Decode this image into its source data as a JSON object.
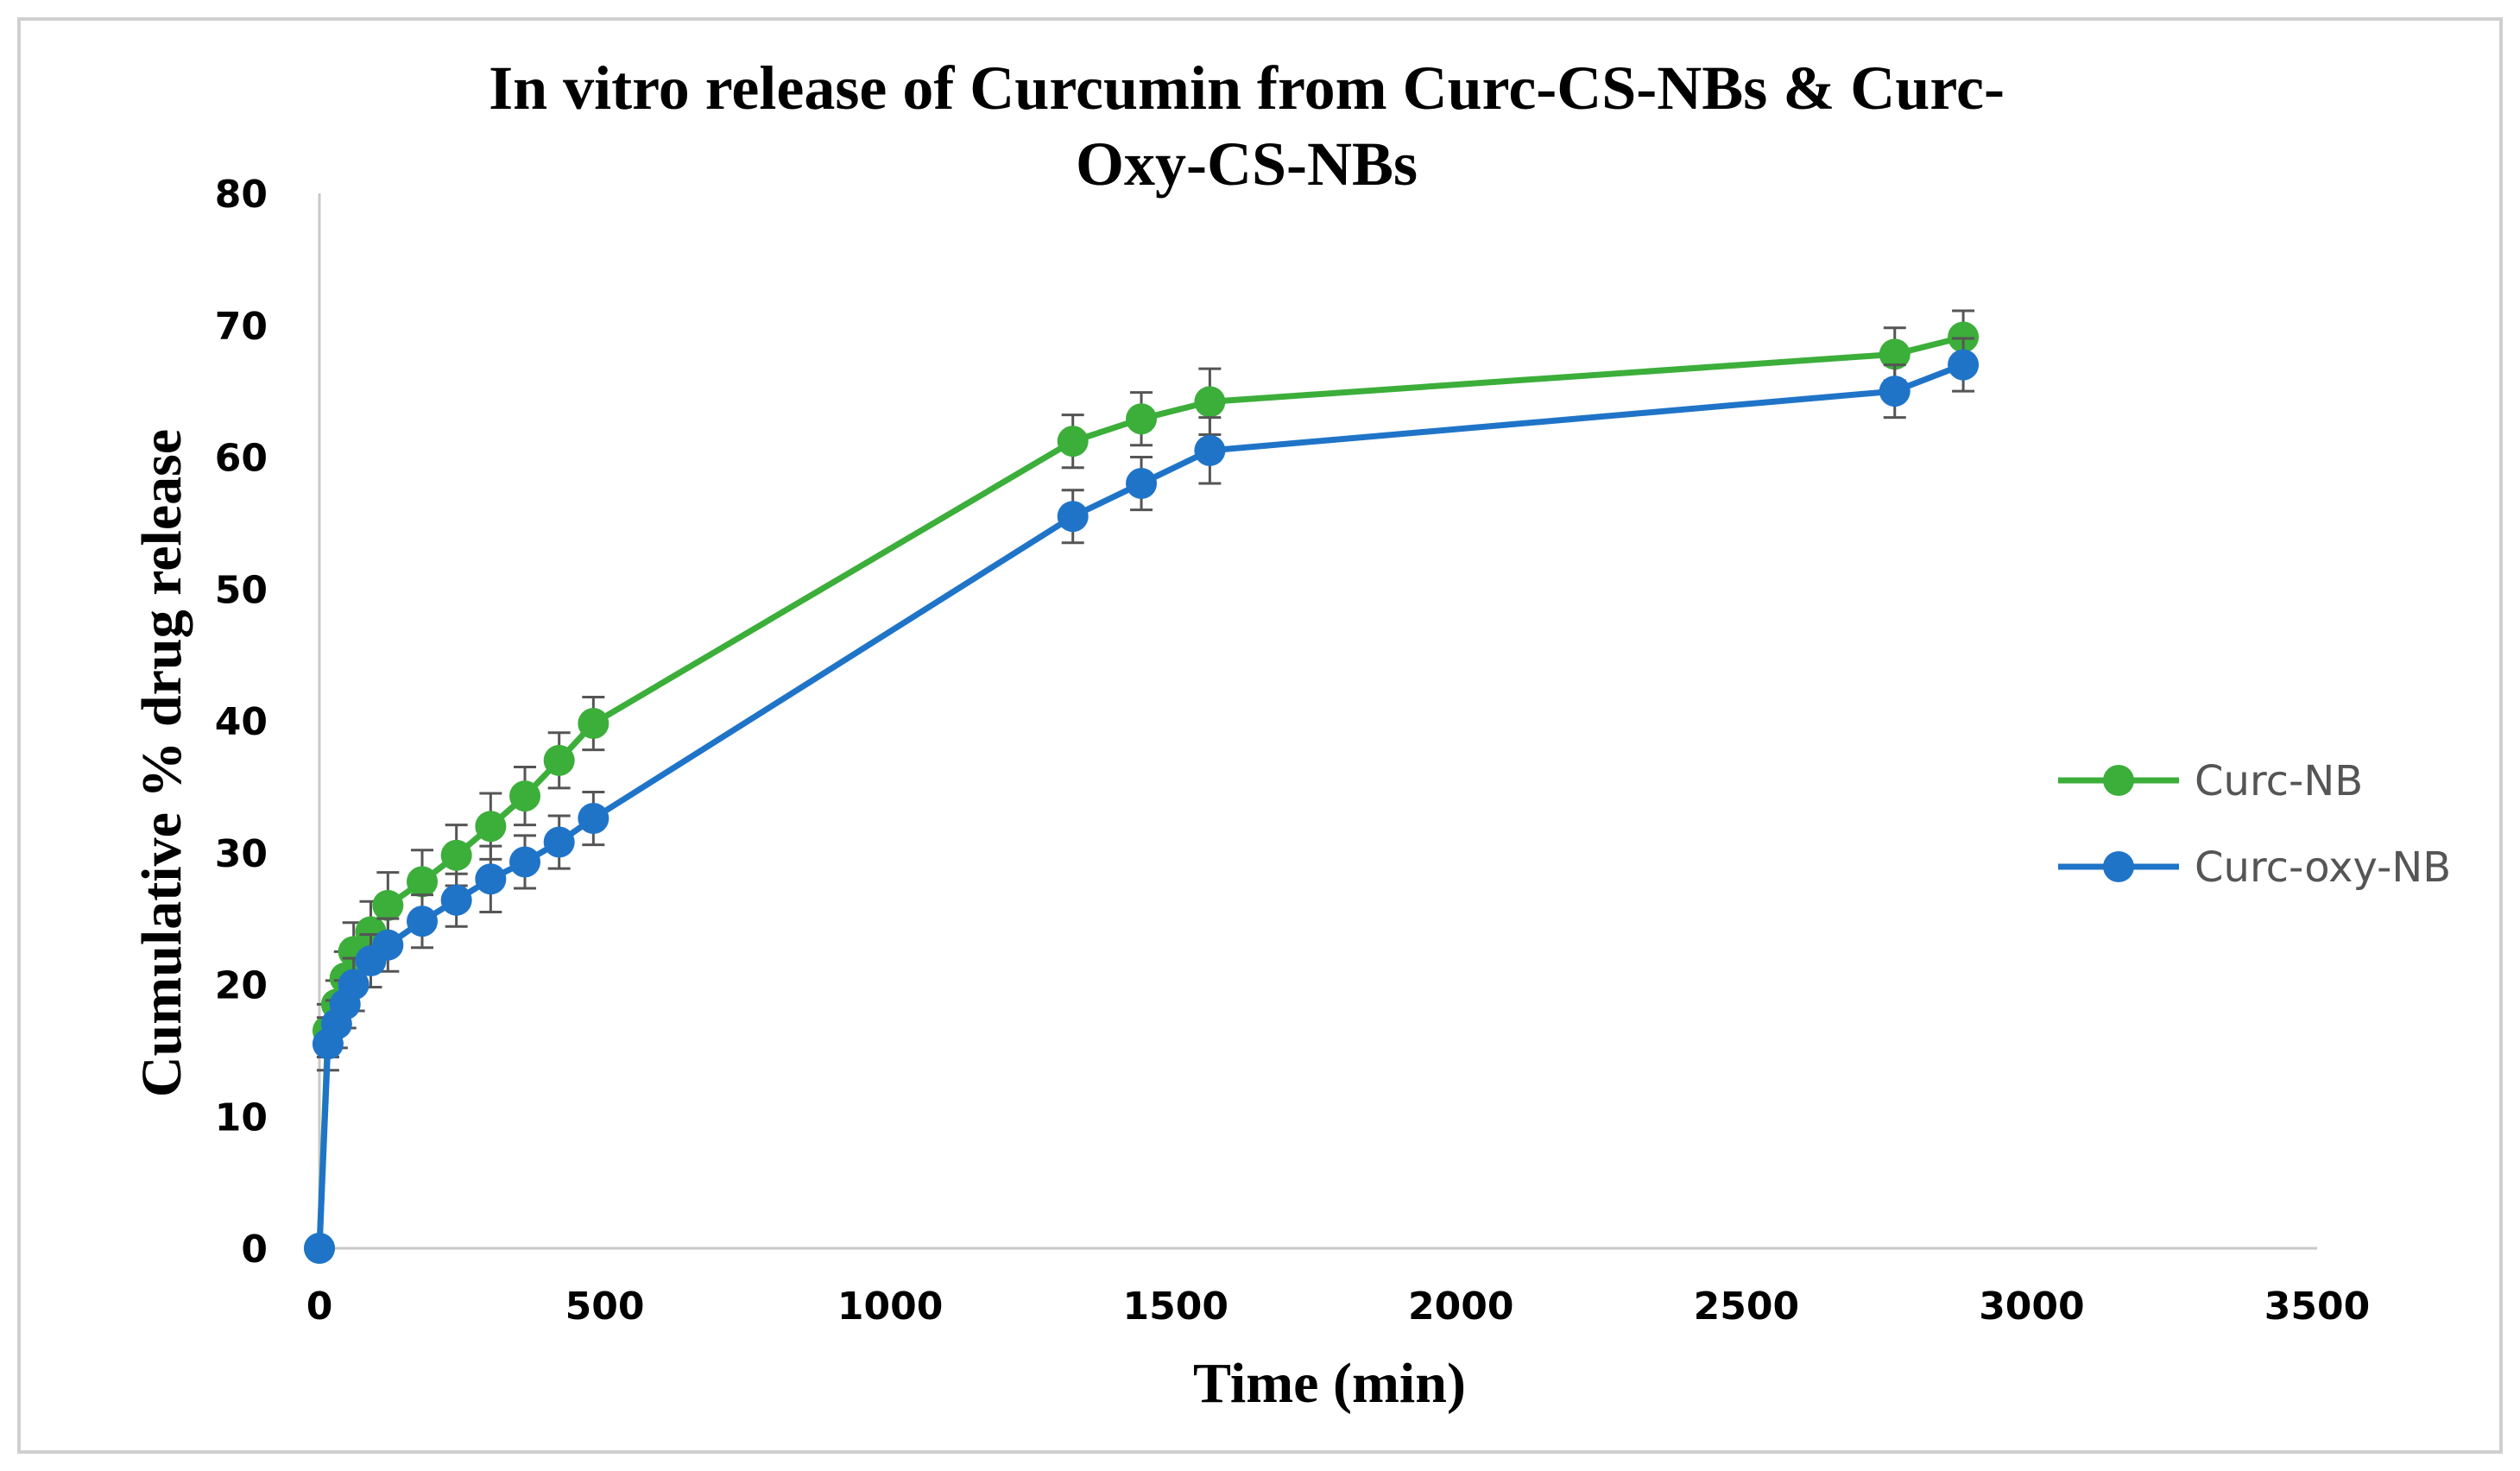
{
  "chart_data": {
    "type": "line",
    "title_lines": [
      "In vitro release of Curcumin from Curc-CS-NBs & Curc-",
      "Oxy-CS-NBs"
    ],
    "xlabel": "Time (min)",
    "ylabel": "Cumulative % drug release",
    "xlim": [
      0,
      3500
    ],
    "ylim": [
      0,
      80
    ],
    "xticks": [
      0,
      500,
      1000,
      1500,
      2000,
      2500,
      3000,
      3500
    ],
    "yticks": [
      0,
      10,
      20,
      30,
      40,
      50,
      60,
      70,
      80
    ],
    "grid": false,
    "legend_position": "right",
    "series": [
      {
        "name": "Curc-NB",
        "color": "#3cae3a",
        "x": [
          0,
          15,
          30,
          45,
          60,
          90,
          120,
          180,
          240,
          300,
          360,
          420,
          480,
          1320,
          1440,
          1560,
          2760,
          2880
        ],
        "y": [
          0,
          16.5,
          18.5,
          20.5,
          22.5,
          24,
          26,
          27.8,
          29.8,
          32,
          34.3,
          37,
          39.8,
          61.2,
          62.9,
          64.2,
          67.8,
          69.1
        ],
        "err": [
          0,
          2,
          1.8,
          2,
          2.2,
          2.3,
          2.5,
          2.4,
          2.3,
          2.5,
          2.2,
          2.1,
          2,
          2,
          2,
          2.5,
          2,
          2
        ]
      },
      {
        "name": "Curc-oxy-NB",
        "color": "#1f74c8",
        "x": [
          0,
          15,
          30,
          45,
          60,
          90,
          120,
          180,
          240,
          300,
          360,
          420,
          480,
          1320,
          1440,
          1560,
          2760,
          2880
        ],
        "y": [
          0,
          15.5,
          17,
          18.5,
          20,
          21.8,
          23,
          24.8,
          26.4,
          28,
          29.3,
          30.8,
          32.6,
          55.5,
          58,
          60.5,
          65,
          67
        ],
        "err": [
          0,
          2,
          1.8,
          1.8,
          2,
          2,
          2,
          2,
          2,
          2.5,
          2,
          2,
          2,
          2,
          2,
          2.5,
          2,
          2
        ]
      }
    ]
  }
}
